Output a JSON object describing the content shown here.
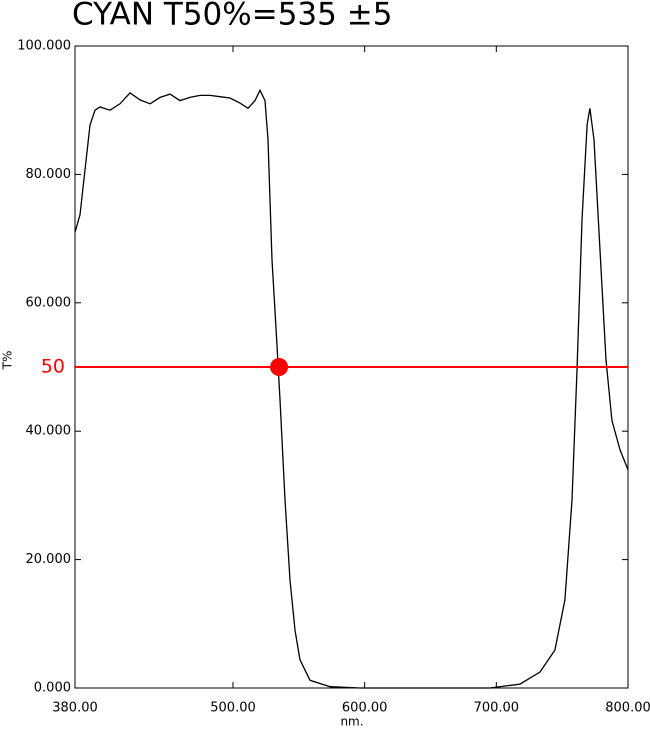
{
  "chart_data": {
    "type": "line",
    "title": "CYAN  T50%=535 ±5",
    "x_label": "nm.",
    "y_label": "T%",
    "x": [
      380,
      383.8,
      387.6,
      391.4,
      395.2,
      399,
      406.6,
      414.2,
      421.8,
      429.4,
      437,
      444.6,
      452.2,
      459.7,
      467.3,
      474.9,
      482.5,
      490.1,
      497.7,
      505.3,
      511.4,
      516.7,
      520.5,
      524.3,
      526.6,
      529.6,
      532.7,
      535.7,
      539.5,
      543.3,
      547.1,
      550.9,
      558.5,
      573.7,
      596.5,
      664.8,
      695.2,
      718,
      733.2,
      744.5,
      752.1,
      757.5,
      761.3,
      765.1,
      768.9,
      771.1,
      774.2,
      778.7,
      783.3,
      787.8,
      793.9,
      800
    ],
    "values": [
      71,
      73.7,
      80.7,
      87.7,
      90,
      90.5,
      90,
      91,
      92.7,
      91.6,
      91,
      92,
      92.5,
      91.5,
      92,
      92.3,
      92.3,
      92.1,
      91.9,
      91.1,
      90.3,
      91.5,
      93.1,
      91.5,
      85.4,
      66.7,
      55.8,
      44.9,
      29.3,
      16.8,
      9.0,
      4.4,
      1.2,
      0.2,
      0,
      0,
      0,
      0.6,
      2.5,
      5.9,
      13.7,
      29.3,
      49.5,
      72.9,
      87.7,
      90.3,
      85.4,
      68.2,
      51.1,
      41.7,
      37.1,
      34.0
    ],
    "color": "#000000",
    "xlim": [
      380,
      800
    ],
    "ylim": [
      0,
      100
    ],
    "xticks": [
      {
        "value": 380,
        "label": "380.00"
      },
      {
        "value": 500,
        "label": "500.00"
      },
      {
        "value": 600,
        "label": "600.00"
      },
      {
        "value": 700,
        "label": "700.00"
      },
      {
        "value": 800,
        "label": "800.00"
      }
    ],
    "yticks": [
      {
        "value": 0,
        "label": "0.000"
      },
      {
        "value": 20,
        "label": "20.000"
      },
      {
        "value": 40,
        "label": "40.000"
      },
      {
        "value": 60,
        "label": "60.000"
      },
      {
        "value": 80,
        "label": "80.000"
      },
      {
        "value": 100,
        "label": "100.000"
      }
    ],
    "hline": {
      "value": 50,
      "color": "#ff0000"
    },
    "marker": {
      "x": 535,
      "y": 50,
      "color": "#ff0000"
    }
  }
}
